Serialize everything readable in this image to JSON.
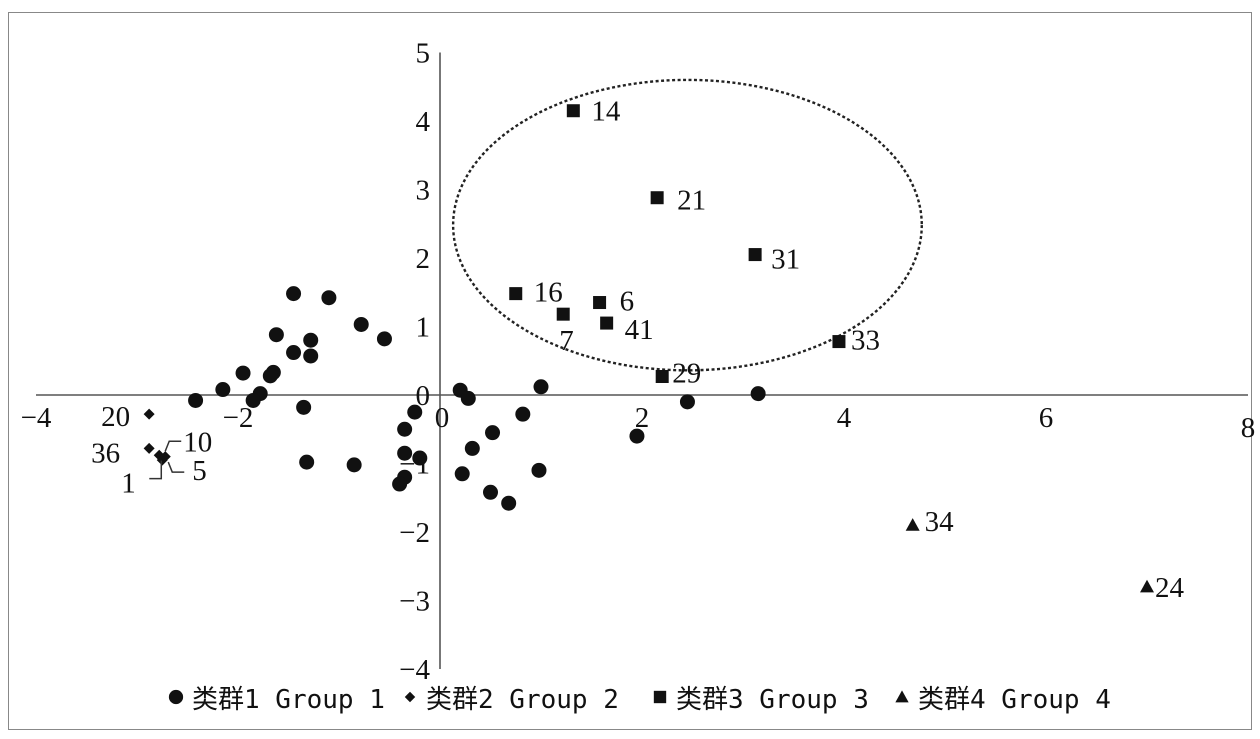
{
  "chart_data": {
    "type": "scatter",
    "title": "",
    "xlabel": "",
    "ylabel": "",
    "xlim": [
      -4,
      8
    ],
    "ylim": [
      -4,
      5
    ],
    "x_ticks": [
      -4,
      -2,
      0,
      2,
      4,
      6,
      8
    ],
    "y_ticks": [
      -4,
      -3,
      -2,
      -1,
      0,
      1,
      2,
      3,
      4,
      5
    ],
    "x_tick_labels": [
      "−4",
      "−2",
      "0",
      "2",
      "4",
      "6",
      "8"
    ],
    "y_tick_labels": [
      "−4",
      "−3",
      "−2",
      "−1",
      "0",
      "1",
      "2",
      "3",
      "4",
      "5"
    ],
    "grid": false,
    "legend": "bottom",
    "series": [
      {
        "name": "类群1 Group 1",
        "marker": "circle",
        "color": "#111111",
        "points": [
          {
            "x": -1.45,
            "y": 1.48
          },
          {
            "x": -1.1,
            "y": 1.42
          },
          {
            "x": -0.78,
            "y": 1.03
          },
          {
            "x": -0.55,
            "y": 0.82
          },
          {
            "x": -1.62,
            "y": 0.88
          },
          {
            "x": -1.28,
            "y": 0.8
          },
          {
            "x": -1.45,
            "y": 0.62
          },
          {
            "x": -1.28,
            "y": 0.57
          },
          {
            "x": -1.65,
            "y": 0.33
          },
          {
            "x": -1.68,
            "y": 0.28
          },
          {
            "x": -1.95,
            "y": 0.32
          },
          {
            "x": -1.78,
            "y": 0.02
          },
          {
            "x": -1.85,
            "y": -0.08
          },
          {
            "x": -2.15,
            "y": 0.08
          },
          {
            "x": -2.42,
            "y": -0.08
          },
          {
            "x": -1.35,
            "y": -0.18
          },
          {
            "x": 0.2,
            "y": 0.07
          },
          {
            "x": 0.28,
            "y": -0.05
          },
          {
            "x": 1.0,
            "y": 0.12
          },
          {
            "x": -0.25,
            "y": -0.25
          },
          {
            "x": -0.35,
            "y": -0.5
          },
          {
            "x": 0.82,
            "y": -0.28
          },
          {
            "x": 0.52,
            "y": -0.55
          },
          {
            "x": 0.32,
            "y": -0.78
          },
          {
            "x": -0.35,
            "y": -0.85
          },
          {
            "x": -0.2,
            "y": -0.92
          },
          {
            "x": -1.32,
            "y": -0.98
          },
          {
            "x": -0.85,
            "y": -1.02
          },
          {
            "x": -0.35,
            "y": -1.2
          },
          {
            "x": -0.4,
            "y": -1.3
          },
          {
            "x": 0.22,
            "y": -1.15
          },
          {
            "x": 0.98,
            "y": -1.1
          },
          {
            "x": 0.5,
            "y": -1.42
          },
          {
            "x": 0.68,
            "y": -1.58
          },
          {
            "x": 1.95,
            "y": -0.6
          },
          {
            "x": 2.45,
            "y": -0.1
          },
          {
            "x": 3.15,
            "y": 0.02
          }
        ]
      },
      {
        "name": "类群2 Group 2",
        "marker": "diamond",
        "color": "#111111",
        "points": [
          {
            "x": -2.88,
            "y": -0.28,
            "label": "20"
          },
          {
            "x": -2.88,
            "y": -0.78,
            "label": "36"
          },
          {
            "x": -2.78,
            "y": -0.88,
            "label": "10"
          },
          {
            "x": -2.75,
            "y": -0.95,
            "label": "5"
          },
          {
            "x": -2.72,
            "y": -0.9,
            "label": "1"
          }
        ]
      },
      {
        "name": "类群3 Group 3",
        "marker": "square",
        "color": "#111111",
        "points": [
          {
            "x": 1.32,
            "y": 4.15,
            "label": "14"
          },
          {
            "x": 2.15,
            "y": 2.88,
            "label": "21"
          },
          {
            "x": 3.12,
            "y": 2.05,
            "label": "31"
          },
          {
            "x": 0.75,
            "y": 1.48,
            "label": "16"
          },
          {
            "x": 1.58,
            "y": 1.35,
            "label": "6"
          },
          {
            "x": 1.22,
            "y": 1.18,
            "label": "7"
          },
          {
            "x": 1.65,
            "y": 1.05,
            "label": "41"
          },
          {
            "x": 3.95,
            "y": 0.78,
            "label": "33"
          },
          {
            "x": 2.2,
            "y": 0.27,
            "label": "29"
          }
        ]
      },
      {
        "name": "类群4 Group 4",
        "marker": "triangle",
        "color": "#111111",
        "points": [
          {
            "x": 4.68,
            "y": -1.9,
            "label": "34"
          },
          {
            "x": 7.0,
            "y": -2.8,
            "label": "24"
          }
        ]
      }
    ],
    "annotations": [
      {
        "type": "dashed-ellipse",
        "center": {
          "x": 2.45,
          "y": 2.48
        },
        "rx": 2.32,
        "ry": 2.12
      }
    ]
  }
}
